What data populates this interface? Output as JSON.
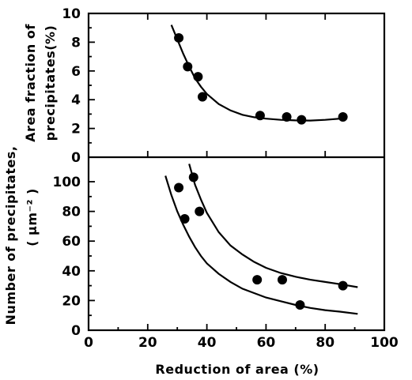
{
  "chart_data": [
    {
      "type": "scatter",
      "panel": "top",
      "ylabel_line1": "Area fraction of",
      "ylabel_line2": "precipitates(%)",
      "xlim": [
        0,
        100
      ],
      "ylim": [
        0,
        10
      ],
      "yticks": [
        0,
        2,
        4,
        6,
        8,
        10
      ],
      "series": [
        {
          "x": [
            30.5,
            33.5,
            37,
            38.5,
            58,
            67,
            72,
            86
          ],
          "y": [
            8.3,
            6.3,
            5.6,
            4.2,
            2.9,
            2.8,
            2.6,
            2.8
          ]
        }
      ],
      "fit_curves": [
        {
          "x": [
            28,
            30,
            32,
            34,
            36,
            38,
            40,
            44,
            48,
            52,
            56,
            60,
            65,
            70,
            75,
            80,
            86
          ],
          "y": [
            9.2,
            8.2,
            7.2,
            6.3,
            5.5,
            4.9,
            4.4,
            3.7,
            3.25,
            2.95,
            2.78,
            2.68,
            2.6,
            2.56,
            2.55,
            2.6,
            2.7
          ]
        }
      ]
    },
    {
      "type": "scatter",
      "panel": "bottom",
      "ylabel_outer": "Number of precipitates,",
      "ylabel_unit": "( μm⁻² )",
      "xlabel": "Reduction of area (%)",
      "xlim": [
        0,
        100
      ],
      "ylim": [
        0,
        110
      ],
      "xticks": [
        0,
        20,
        40,
        60,
        80,
        100
      ],
      "yticks": [
        0,
        20,
        40,
        60,
        80,
        100
      ],
      "series": [
        {
          "x": [
            30.5,
            32.5,
            35.5,
            37.5,
            57,
            65.5,
            71.5,
            86
          ],
          "y": [
            96,
            75,
            103,
            80,
            34,
            34,
            17,
            30
          ]
        }
      ],
      "fit_curves": [
        {
          "x": [
            34,
            36,
            38,
            40,
            44,
            48,
            52,
            56,
            60,
            65,
            70,
            75,
            80,
            85,
            91
          ],
          "y": [
            112,
            98,
            88,
            79,
            66,
            57,
            51,
            46,
            42,
            38.5,
            36,
            34,
            32.5,
            31,
            29
          ]
        },
        {
          "x": [
            26,
            28,
            30,
            32,
            34,
            36,
            38,
            40,
            44,
            48,
            52,
            56,
            60,
            65,
            70,
            75,
            80,
            85,
            91
          ],
          "y": [
            104,
            91,
            80,
            71,
            63,
            56,
            50,
            45,
            38,
            32.5,
            28,
            25,
            22,
            19.5,
            17,
            15,
            13.5,
            12.5,
            11
          ]
        }
      ]
    }
  ]
}
